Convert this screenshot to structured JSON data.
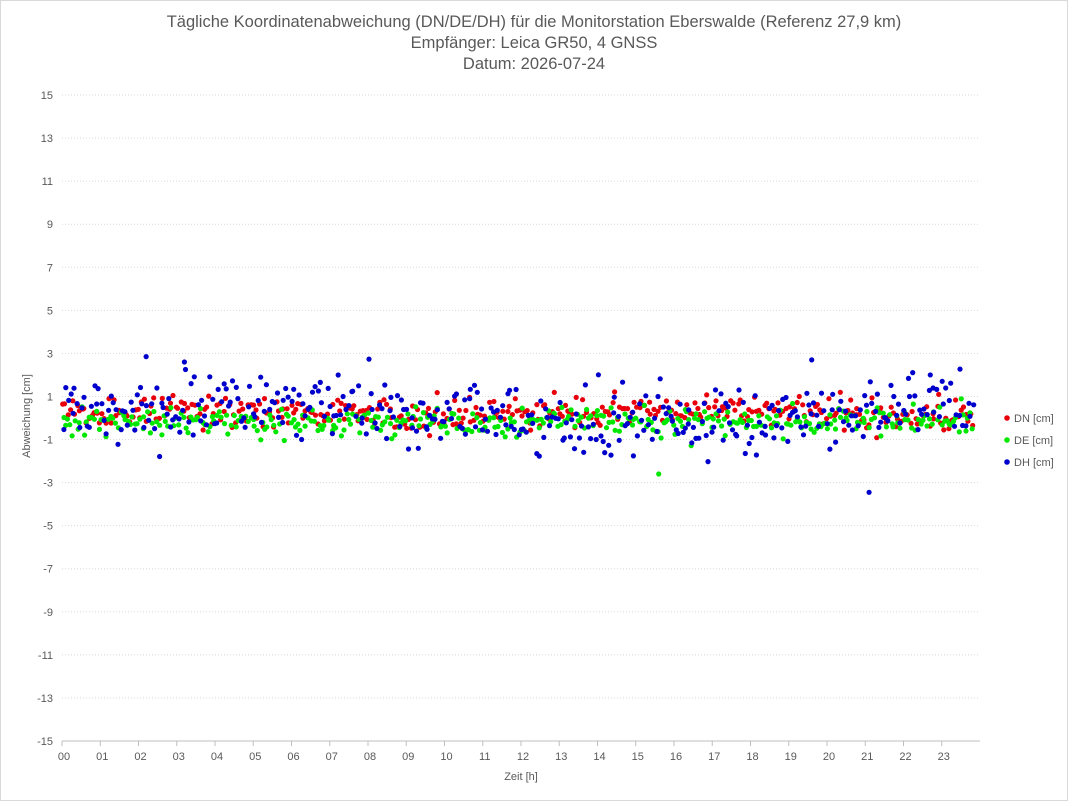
{
  "chart_data": {
    "type": "scatter",
    "title_lines": [
      "Tägliche Koordinatenabweichung (DN/DE/DH) für die Monitorstation Eberswalde (Referenz 27,9 km)",
      "Empfänger: Leica GR50, 4 GNSS",
      "Datum: 2026-07-24"
    ],
    "xlabel": "Zeit [h]",
    "ylabel": "Abweichung [cm]",
    "xlim": [
      0,
      24
    ],
    "ylim": [
      -15,
      15
    ],
    "x_ticks": [
      "00",
      "01",
      "02",
      "03",
      "04",
      "05",
      "06",
      "07",
      "08",
      "09",
      "10",
      "11",
      "12",
      "13",
      "14",
      "15",
      "16",
      "17",
      "18",
      "19",
      "20",
      "21",
      "22",
      "23"
    ],
    "y_ticks": [
      15,
      13,
      11,
      9,
      7,
      5,
      3,
      1,
      -1,
      -3,
      -5,
      -7,
      -9,
      -11,
      -13,
      -15
    ],
    "grid": "horizontal",
    "legend_position": "right",
    "series": [
      {
        "name": "DN [cm]",
        "color": "#e8000b",
        "noise": 0.38,
        "mean": 0.25
      },
      {
        "name": "DE [cm]",
        "color": "#00e800",
        "noise": 0.35,
        "mean": -0.15
      },
      {
        "name": "DH [cm]",
        "color": "#0000cc",
        "noise": 0.75,
        "mean": 0.2
      }
    ],
    "annotated_extremes": [
      {
        "series": "DH [cm]",
        "x": 2.2,
        "y": 2.85
      },
      {
        "series": "DH [cm]",
        "x": 19.6,
        "y": 2.7
      },
      {
        "series": "DH [cm]",
        "x": 21.1,
        "y": -3.45
      },
      {
        "series": "DE [cm]",
        "x": 15.6,
        "y": -2.6
      },
      {
        "series": "DH [cm]",
        "x": 22.7,
        "y": 2.0
      },
      {
        "series": "DH [cm]",
        "x": 3.2,
        "y": 2.6
      }
    ]
  }
}
